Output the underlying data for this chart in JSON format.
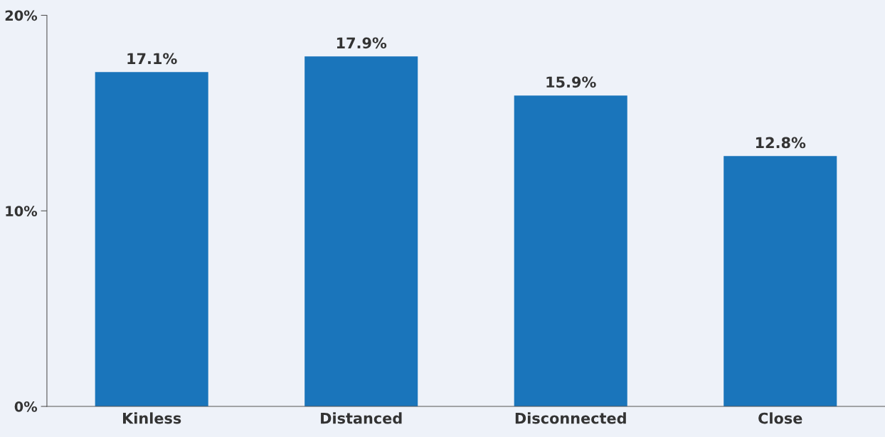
{
  "chart_data": {
    "type": "bar",
    "categories": [
      "Kinless",
      "Distanced",
      "Disconnected",
      "Close"
    ],
    "values": [
      17.1,
      17.9,
      15.9,
      12.8
    ],
    "value_labels": [
      "17.1%",
      "17.9%",
      "15.9%",
      "12.8%"
    ],
    "color": "#1a75bb",
    "ylim": [
      0,
      20
    ],
    "yticks": [
      {
        "value": 0,
        "label": "0%"
      },
      {
        "value": 10,
        "label": "10%"
      },
      {
        "value": 20,
        "label": "20%"
      }
    ],
    "grid": false,
    "legend": false
  }
}
